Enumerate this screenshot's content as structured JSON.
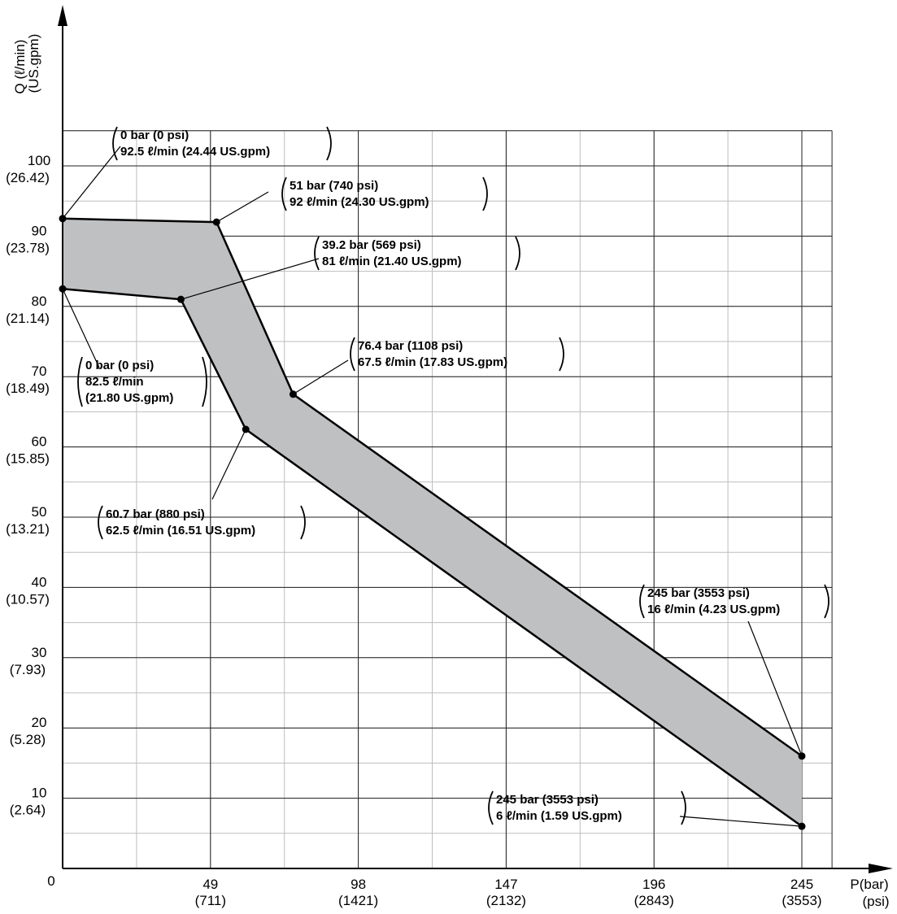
{
  "chart_data": {
    "type": "area",
    "title": "",
    "x_axis": {
      "label_line1": "P(bar)",
      "label_line2": "(psi)",
      "range": [
        0,
        245
      ],
      "grid_max": 255,
      "ticks": [
        {
          "value": 49,
          "label": "49",
          "sub": "(711)"
        },
        {
          "value": 98,
          "label": "98",
          "sub": "(1421)"
        },
        {
          "value": 147,
          "label": "147",
          "sub": "(2132)"
        },
        {
          "value": 196,
          "label": "196",
          "sub": "(2843)"
        },
        {
          "value": 245,
          "label": "245",
          "sub": "(3553)"
        }
      ]
    },
    "y_axis": {
      "label_line1": "Q (ℓ/min)",
      "label_line2": "(US.gpm)",
      "range": [
        0,
        105
      ],
      "ticks": [
        {
          "value": 10,
          "label": "10",
          "sub": "(2.64)"
        },
        {
          "value": 20,
          "label": "20",
          "sub": "(5.28)"
        },
        {
          "value": 30,
          "label": "30",
          "sub": "(7.93)"
        },
        {
          "value": 40,
          "label": "40",
          "sub": "(10.57)"
        },
        {
          "value": 50,
          "label": "50",
          "sub": "(13.21)"
        },
        {
          "value": 60,
          "label": "60",
          "sub": "(15.85)"
        },
        {
          "value": 70,
          "label": "70",
          "sub": "(18.49)"
        },
        {
          "value": 80,
          "label": "80",
          "sub": "(21.14)"
        },
        {
          "value": 90,
          "label": "90",
          "sub": "(23.78)"
        },
        {
          "value": 100,
          "label": "100",
          "sub": "(26.42)"
        }
      ]
    },
    "origin_label": "0",
    "grid": true,
    "fill_color": "#bfc0c2",
    "series": [
      {
        "x": [
          0,
          51,
          76.4,
          245
        ],
        "y": [
          92.5,
          92,
          67.5,
          16
        ]
      },
      {
        "x": [
          0,
          39.2,
          60.7,
          245
        ],
        "y": [
          82.5,
          81,
          62.5,
          6
        ]
      }
    ],
    "points": [
      {
        "x": 0,
        "y": 92.5,
        "lines": [
          "0 bar (0 psi)",
          "92.5 ℓ/min (24.44 US.gpm)"
        ]
      },
      {
        "x": 51,
        "y": 92,
        "lines": [
          "51 bar (740 psi)",
          "92 ℓ/min (24.30 US.gpm)"
        ]
      },
      {
        "x": 39.2,
        "y": 81,
        "lines": [
          "39.2 bar (569 psi)",
          "81 ℓ/min (21.40 US.gpm)"
        ]
      },
      {
        "x": 0,
        "y": 82.5,
        "lines": [
          "0 bar (0 psi)",
          "82.5 ℓ/min",
          "(21.80 US.gpm)"
        ]
      },
      {
        "x": 76.4,
        "y": 67.5,
        "lines": [
          "76.4 bar (1108 psi)",
          "67.5 ℓ/min (17.83 US.gpm)"
        ]
      },
      {
        "x": 60.7,
        "y": 62.5,
        "lines": [
          "60.7 bar (880 psi)",
          "62.5 ℓ/min (16.51 US.gpm)"
        ]
      },
      {
        "x": 245,
        "y": 16,
        "lines": [
          "245 bar (3553 psi)",
          "16 ℓ/min (4.23 US.gpm)"
        ]
      },
      {
        "x": 245,
        "y": 6,
        "lines": [
          "245 bar (3553 psi)",
          "6 ℓ/min (1.59 US.gpm)"
        ]
      }
    ]
  }
}
